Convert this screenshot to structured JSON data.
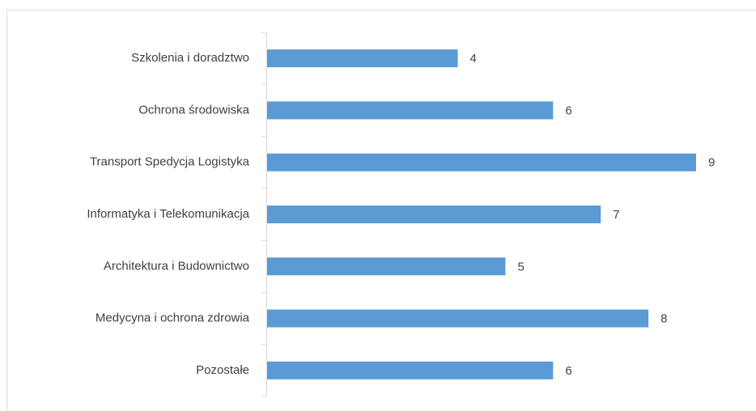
{
  "chart_data": {
    "type": "bar",
    "orientation": "horizontal",
    "categories": [
      "Szkolenia i doradztwo",
      "Ochrona środowiska",
      "Transport Spedycja Logistyka",
      "Informatyka i Telekomunikacja",
      "Architektura i Budownictwo",
      "Medycyna i ochrona zdrowia",
      "Pozostałe"
    ],
    "values": [
      4,
      6,
      9,
      7,
      5,
      8,
      6
    ],
    "color": "#5b9bd5"
  }
}
